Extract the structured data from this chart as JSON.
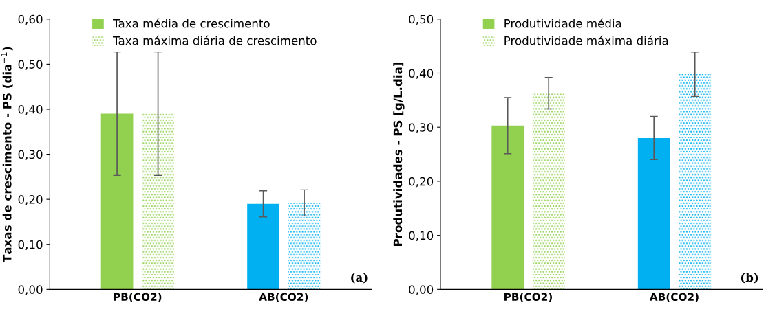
{
  "chart_data": [
    {
      "type": "bar",
      "categories": [
        "PB(CO2)",
        "AB(CO2)"
      ],
      "ylabel": "Taxas de crescimento - PS (dia$^{−1}$)",
      "legend": "top left",
      "grid": false,
      "ylim": [
        0,
        0.6
      ],
      "yticks": [
        {
          "value": 0,
          "label": "0,00"
        },
        {
          "value": 0.1,
          "label": "0,10"
        },
        {
          "value": 0.2,
          "label": "0,20"
        },
        {
          "value": 0.3,
          "label": "0,30"
        },
        {
          "value": 0.4,
          "label": "0,40"
        },
        {
          "value": 0.5,
          "label": "0,50"
        },
        {
          "value": 0.6,
          "label": "0,60"
        }
      ],
      "series": [
        {
          "name": "Taxa média de crescimento",
          "color": "#92d050",
          "colors": [
            "#92d050",
            "#00b0f0"
          ],
          "values": [
            0.39,
            0.19
          ],
          "errors": [
            0.137,
            0.029
          ]
        },
        {
          "name": "Taxa máxima diária de crescimento",
          "color": "#92d050",
          "colors": [
            "#92d050",
            "#00b0f0"
          ],
          "values": [
            0.39,
            0.192
          ],
          "errors": [
            0.137,
            0.029
          ]
        }
      ],
      "annotations": [
        "(a)"
      ]
    },
    {
      "type": "bar",
      "categories": [
        "PB(CO2)",
        "AB(CO2)"
      ],
      "ylabel": "Produtividades - PS [g/L.dia]",
      "legend": "top left",
      "grid": false,
      "ylim": [
        0,
        0.5
      ],
      "yticks": [
        {
          "value": 0,
          "label": "0,00"
        },
        {
          "value": 0.1,
          "label": "0,10"
        },
        {
          "value": 0.2,
          "label": "0,20"
        },
        {
          "value": 0.3,
          "label": "0,30"
        },
        {
          "value": 0.4,
          "label": "0,40"
        },
        {
          "value": 0.5,
          "label": "0,50"
        }
      ],
      "series": [
        {
          "name": "Produtividade média",
          "color": "#92d050",
          "colors": [
            "#92d050",
            "#00b0f0"
          ],
          "values": [
            0.303,
            0.28
          ],
          "errors": [
            0.052,
            0.04
          ]
        },
        {
          "name": "Produtividade máxima diária",
          "color": "#92d050",
          "colors": [
            "#92d050",
            "#00b0f0"
          ],
          "values": [
            0.363,
            0.398
          ],
          "errors": [
            0.029,
            0.041
          ]
        }
      ],
      "annotations": [
        "(b)"
      ]
    }
  ]
}
